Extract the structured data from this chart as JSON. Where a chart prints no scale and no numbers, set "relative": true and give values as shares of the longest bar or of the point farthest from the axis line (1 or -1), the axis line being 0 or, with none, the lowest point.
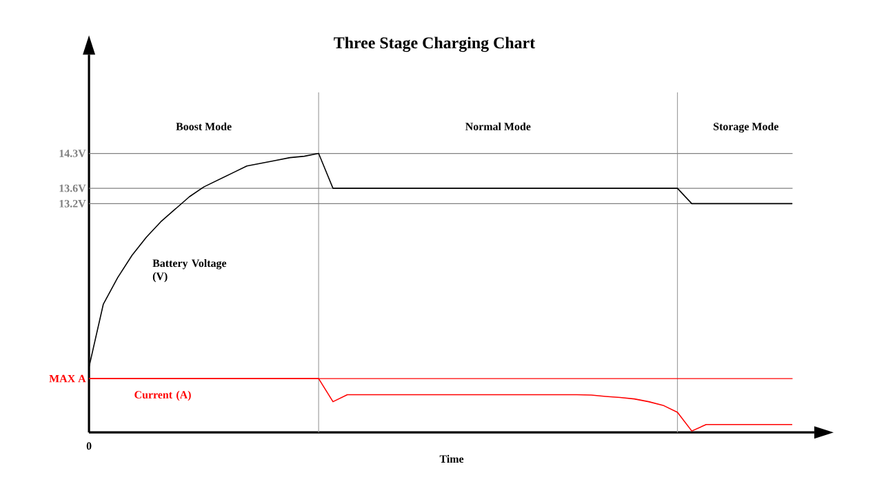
{
  "chart_data": {
    "type": "line",
    "title": "Three Stage Charging Chart",
    "xlabel": "Time",
    "relative": true,
    "categories": [
      null,
      null,
      null,
      null,
      null,
      null,
      null,
      null,
      null,
      null,
      null,
      null,
      null,
      null,
      null,
      null,
      null,
      null,
      null,
      null,
      null,
      null,
      null,
      null,
      null,
      null,
      null,
      null,
      null,
      null,
      null,
      null,
      null,
      null,
      null,
      null,
      null,
      null,
      null,
      null,
      null,
      null,
      null,
      null,
      null,
      null,
      null,
      null,
      null,
      null
    ],
    "series": [
      {
        "name": "Battery Voltage (V)",
        "color": "#000000",
        "values": [
          0.234,
          0.46,
          0.555,
          0.635,
          0.7,
          0.755,
          0.8,
          0.845,
          0.88,
          0.905,
          0.93,
          0.955,
          0.965,
          0.975,
          0.985,
          0.99,
          1.0,
          0.875,
          0.875,
          0.875,
          0.875,
          0.875,
          0.875,
          0.875,
          0.875,
          0.875,
          0.875,
          0.875,
          0.875,
          0.875,
          0.875,
          0.875,
          0.875,
          0.875,
          0.875,
          0.875,
          0.875,
          0.875,
          0.875,
          0.875,
          0.875,
          0.875,
          0.82,
          0.82,
          0.82,
          0.82,
          0.82,
          0.82,
          0.82,
          0.82
        ]
      },
      {
        "name": "Current (A)",
        "color": "#ff0000",
        "values": [
          0.193,
          0.193,
          0.193,
          0.193,
          0.193,
          0.193,
          0.193,
          0.193,
          0.193,
          0.193,
          0.193,
          0.193,
          0.193,
          0.193,
          0.193,
          0.193,
          0.193,
          0.11,
          0.135,
          0.135,
          0.135,
          0.135,
          0.135,
          0.135,
          0.135,
          0.135,
          0.135,
          0.135,
          0.135,
          0.135,
          0.135,
          0.135,
          0.135,
          0.135,
          0.135,
          0.134,
          0.129,
          0.125,
          0.12,
          0.11,
          0.097,
          0.072,
          0.005,
          0.028,
          0.028,
          0.028,
          0.028,
          0.028,
          0.028,
          0.028
        ]
      }
    ],
    "ref_lines": [
      {
        "axis": "y",
        "value": 1.0,
        "label": "14.3V",
        "color": "#808080"
      },
      {
        "axis": "y",
        "value": 0.875,
        "label": "13.6V",
        "color": "#808080"
      },
      {
        "axis": "y",
        "value": 0.82,
        "label": "13.2V",
        "color": "#808080"
      },
      {
        "axis": "y",
        "value": 0.193,
        "label": "MAX A",
        "color": "#ff0000"
      }
    ],
    "annotations": [
      "0",
      "Boost Mode",
      "Normal Mode",
      "Storage Mode"
    ],
    "legend": false,
    "grid": false,
    "marker": "none",
    "line_style": "solid"
  }
}
